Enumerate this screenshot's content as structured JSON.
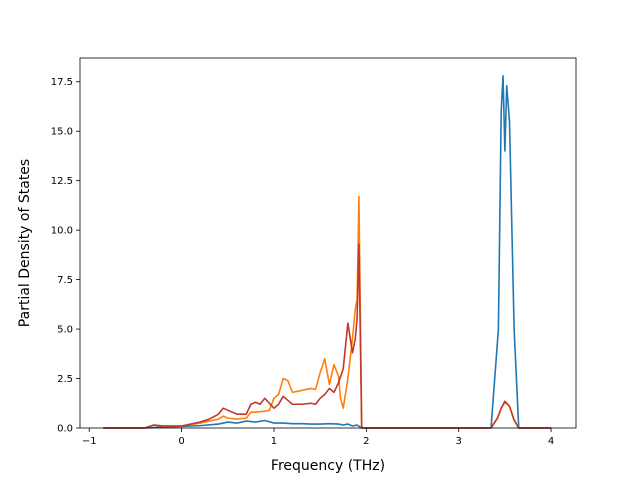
{
  "chart_data": {
    "type": "line",
    "title": "",
    "xlabel": "Frequency (THz)",
    "ylabel": "Partial Density of States",
    "xlim": [
      -1.1,
      4.27
    ],
    "ylim": [
      0,
      18.7
    ],
    "xticks": [
      -1,
      0,
      1,
      2,
      3,
      4
    ],
    "xtick_labels": [
      "−1",
      "0",
      "1",
      "2",
      "3",
      "4"
    ],
    "yticks": [
      0,
      2.5,
      5,
      7.5,
      10,
      12.5,
      15,
      17.5
    ],
    "ytick_labels": [
      "0.0",
      "2.5",
      "5.0",
      "7.5",
      "10.0",
      "12.5",
      "15.0",
      "17.5"
    ],
    "grid": false,
    "legend": "none",
    "series": [
      {
        "color": "#1f77b4",
        "x": [
          -0.85,
          -0.4,
          -0.2,
          0.0,
          0.2,
          0.4,
          0.5,
          0.6,
          0.7,
          0.8,
          0.9,
          1.0,
          1.1,
          1.2,
          1.3,
          1.4,
          1.5,
          1.6,
          1.7,
          1.75,
          1.8,
          1.85,
          1.9,
          1.95,
          2.0,
          3.0,
          3.35,
          3.43,
          3.46,
          3.48,
          3.5,
          3.52,
          3.55,
          3.6,
          3.65,
          4.0
        ],
        "y": [
          0,
          0,
          0.05,
          0.08,
          0.12,
          0.2,
          0.3,
          0.25,
          0.35,
          0.3,
          0.38,
          0.25,
          0.25,
          0.22,
          0.22,
          0.2,
          0.2,
          0.22,
          0.2,
          0.15,
          0.2,
          0.1,
          0.15,
          0,
          0,
          0,
          0,
          5,
          16,
          17.8,
          14,
          17.3,
          15.5,
          5,
          0,
          0
        ]
      },
      {
        "color": "#ff7f0e",
        "x": [
          -0.85,
          -0.4,
          -0.3,
          -0.2,
          0.0,
          0.2,
          0.3,
          0.4,
          0.45,
          0.5,
          0.6,
          0.7,
          0.75,
          0.8,
          0.9,
          0.95,
          1.0,
          1.05,
          1.1,
          1.15,
          1.2,
          1.3,
          1.4,
          1.45,
          1.5,
          1.55,
          1.6,
          1.65,
          1.7,
          1.72,
          1.75,
          1.8,
          1.85,
          1.88,
          1.9,
          1.92,
          1.95,
          2.0,
          3.0,
          3.35,
          3.42,
          3.46,
          3.5,
          3.55,
          3.6,
          3.65,
          4.0
        ],
        "y": [
          0,
          0,
          0.15,
          0.1,
          0.1,
          0.25,
          0.35,
          0.45,
          0.6,
          0.5,
          0.45,
          0.5,
          0.8,
          0.8,
          0.85,
          0.9,
          1.5,
          1.7,
          2.5,
          2.4,
          1.8,
          1.9,
          2.0,
          1.95,
          2.8,
          3.5,
          2.2,
          3.2,
          2.6,
          1.5,
          1.0,
          2.5,
          4.5,
          6.0,
          6.5,
          11.7,
          0,
          0,
          0,
          0,
          0.5,
          1.0,
          1.3,
          1.1,
          0.4,
          0,
          0
        ]
      },
      {
        "color": "#c0392b",
        "x": [
          -0.85,
          -0.4,
          -0.3,
          -0.2,
          0.0,
          0.2,
          0.3,
          0.4,
          0.45,
          0.5,
          0.6,
          0.7,
          0.75,
          0.8,
          0.85,
          0.9,
          1.0,
          1.05,
          1.1,
          1.15,
          1.2,
          1.3,
          1.4,
          1.45,
          1.5,
          1.55,
          1.6,
          1.65,
          1.7,
          1.75,
          1.8,
          1.85,
          1.88,
          1.9,
          1.92,
          1.95,
          2.0,
          3.0,
          3.35,
          3.42,
          3.46,
          3.5,
          3.55,
          3.6,
          3.65,
          4.0
        ],
        "y": [
          0,
          0,
          0.15,
          0.1,
          0.1,
          0.3,
          0.45,
          0.7,
          1.0,
          0.9,
          0.7,
          0.7,
          1.2,
          1.3,
          1.2,
          1.5,
          1.0,
          1.2,
          1.6,
          1.4,
          1.2,
          1.2,
          1.25,
          1.2,
          1.5,
          1.7,
          2.0,
          1.8,
          2.3,
          3.0,
          5.3,
          3.8,
          4.5,
          5.5,
          9.3,
          0,
          0,
          0,
          0,
          0.5,
          1.0,
          1.35,
          1.1,
          0.4,
          0,
          0
        ]
      }
    ]
  }
}
